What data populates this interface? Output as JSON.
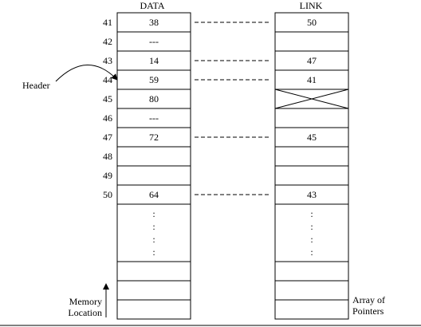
{
  "headers": {
    "data": "DATA",
    "link": "LINK"
  },
  "rows": [
    {
      "loc": "41",
      "data": "38",
      "link": "50",
      "linked": true
    },
    {
      "loc": "42",
      "data": "---",
      "link": "",
      "linked": false
    },
    {
      "loc": "43",
      "data": "14",
      "link": "47",
      "linked": true
    },
    {
      "loc": "44",
      "data": "59",
      "link": "41",
      "linked": true
    },
    {
      "loc": "45",
      "data": "80",
      "link": "",
      "linked": false,
      "null_link": true
    },
    {
      "loc": "46",
      "data": "---",
      "link": "",
      "linked": false
    },
    {
      "loc": "47",
      "data": "72",
      "link": "45",
      "linked": true
    },
    {
      "loc": "48",
      "data": "",
      "link": "",
      "linked": false
    },
    {
      "loc": "49",
      "data": "",
      "link": "",
      "linked": false
    },
    {
      "loc": "50",
      "data": "64",
      "link": "43",
      "linked": true
    }
  ],
  "ellipsis": ":",
  "header_label": "Header",
  "header_points_to": "44",
  "memory_location_label": [
    "Memory",
    "Location"
  ],
  "array_label": [
    "Array of",
    "Pointers"
  ]
}
